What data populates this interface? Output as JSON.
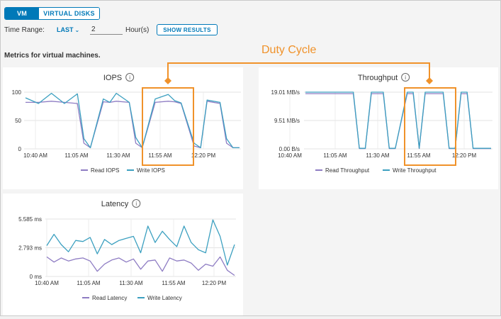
{
  "toggle": {
    "vm_label": "VM",
    "disks_label": "VIRTUAL DISKS"
  },
  "time_range": {
    "label": "Time Range:",
    "selected": "LAST",
    "value": "2",
    "unit": "Hour(s)",
    "button": "SHOW RESULTS"
  },
  "metrics_title": "Metrics for virtual machines.",
  "annotation": {
    "label": "Duty Cycle",
    "color": "#f0922a"
  },
  "colors": {
    "accent": "#0079b8",
    "read": "#8e7cc3",
    "write": "#3ca0c0"
  },
  "chart_data": [
    {
      "type": "line",
      "title": "IOPS",
      "x_ticks": [
        "10:40 AM",
        "11:05 AM",
        "11:30 AM",
        "11:55 AM",
        "12:20 PM"
      ],
      "y_ticks": [
        "0",
        "50",
        "100"
      ],
      "ylim": [
        0,
        100
      ],
      "x": [
        0,
        2,
        4,
        6,
        8,
        9,
        10,
        12,
        13,
        14,
        16,
        17,
        18,
        20,
        22,
        23,
        24,
        26,
        27,
        28,
        30,
        31,
        32,
        33
      ],
      "series": [
        {
          "name": "Read IOPS",
          "values": [
            82,
            82,
            84,
            82,
            80,
            10,
            2,
            83,
            82,
            84,
            82,
            10,
            2,
            82,
            84,
            83,
            80,
            5,
            2,
            84,
            80,
            10,
            2,
            2
          ]
        },
        {
          "name": "Write IOPS",
          "values": [
            90,
            80,
            98,
            80,
            97,
            18,
            2,
            88,
            82,
            98,
            82,
            20,
            2,
            88,
            96,
            85,
            81,
            10,
            2,
            86,
            82,
            18,
            2,
            2
          ]
        }
      ],
      "legend": "bottom"
    },
    {
      "type": "line",
      "title": "Throughput",
      "x_ticks": [
        "10:40 AM",
        "11:05 AM",
        "11:30 AM",
        "11:55 AM",
        "12:20 PM"
      ],
      "y_ticks": [
        "0.00 B/s",
        "9.51 MB/s",
        "19.01 MB/s"
      ],
      "ylim": [
        0,
        19.01
      ],
      "x": [
        0,
        8,
        9,
        10,
        11,
        13,
        14,
        15,
        17,
        18,
        19,
        20,
        23,
        24,
        25,
        26,
        27,
        28,
        30,
        31
      ],
      "series": [
        {
          "name": "Read Throughput",
          "values": [
            18.5,
            18.5,
            0.1,
            0.1,
            18.5,
            18.5,
            0.1,
            0.1,
            18.5,
            18.5,
            0.1,
            18.5,
            18.5,
            0.1,
            0.1,
            18.5,
            18.5,
            0.1,
            0.1,
            0.1
          ]
        },
        {
          "name": "Write Throughput",
          "values": [
            19.0,
            19.0,
            0.2,
            0.2,
            19.0,
            19.0,
            0.2,
            0.2,
            19.0,
            19.0,
            0.2,
            19.0,
            19.0,
            0.2,
            0.2,
            19.0,
            19.0,
            0.2,
            0.2,
            0.2
          ]
        }
      ],
      "legend": "bottom"
    },
    {
      "type": "line",
      "title": "Latency",
      "x_ticks": [
        "10:40 AM",
        "11:05 AM",
        "11:30 AM",
        "11:55 AM",
        "12:20 PM"
      ],
      "y_ticks": [
        "0 ms",
        "2.793 ms",
        "5.585 ms"
      ],
      "ylim": [
        0,
        5.585
      ],
      "x": [
        0,
        1,
        2,
        3,
        4,
        5,
        6,
        7,
        8,
        9,
        10,
        11,
        12,
        13,
        14,
        15,
        16,
        17,
        18,
        19,
        20,
        21,
        22,
        23,
        24,
        25,
        26
      ],
      "series": [
        {
          "name": "Read Latency",
          "values": [
            1.9,
            1.4,
            1.8,
            1.5,
            1.7,
            1.8,
            1.5,
            0.5,
            1.2,
            1.6,
            1.8,
            1.4,
            1.7,
            0.7,
            1.5,
            1.6,
            0.5,
            1.8,
            1.5,
            1.6,
            1.3,
            0.6,
            1.2,
            1.0,
            1.9,
            0.6,
            0.1
          ]
        },
        {
          "name": "Write Latency",
          "values": [
            3.0,
            4.1,
            3.1,
            2.4,
            3.5,
            3.4,
            3.8,
            2.2,
            3.6,
            3.1,
            3.5,
            3.7,
            3.9,
            2.3,
            4.9,
            3.3,
            4.4,
            3.6,
            2.9,
            4.9,
            3.3,
            2.6,
            2.3,
            5.5,
            3.9,
            1.1,
            3.1
          ]
        }
      ],
      "legend": "bottom"
    }
  ]
}
